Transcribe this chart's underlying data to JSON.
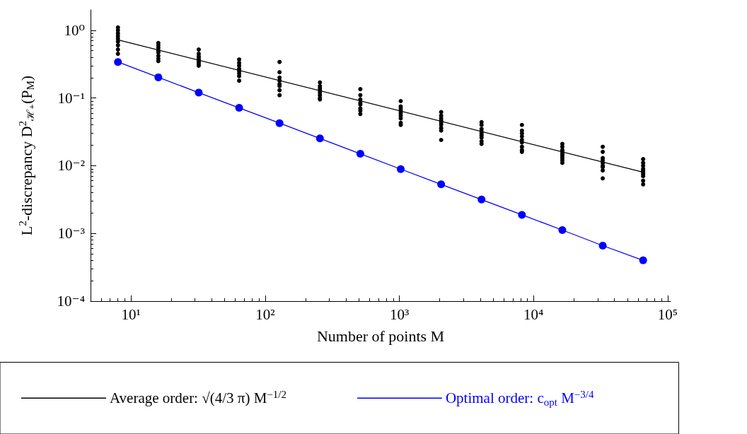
{
  "chart_data": {
    "type": "line",
    "xlabel": "Number of points M",
    "ylabel": "L$^{2}$-discrepancy D$^{2}$$_{ℋ₊}$(P$_{M}$)",
    "log": "xy",
    "xlim": [
      5,
      105000
    ],
    "xticks": [
      {
        "value": 10,
        "label": "10¹"
      },
      {
        "value": 100,
        "label": "10²"
      },
      {
        "value": 1000,
        "label": "10³"
      },
      {
        "value": 10000,
        "label": "10⁴"
      },
      {
        "value": 100000,
        "label": "10⁵"
      }
    ],
    "ylim": [
      0.0001,
      2
    ],
    "yticks": [
      {
        "value": 0.0001,
        "label": "10⁻⁴"
      },
      {
        "value": 0.001,
        "label": "10⁻³"
      },
      {
        "value": 0.01,
        "label": "10⁻²"
      },
      {
        "value": 0.1,
        "label": "10⁻¹"
      },
      {
        "value": 1,
        "label": "10⁰"
      }
    ],
    "grid": false,
    "legend": "bottom",
    "series": [
      {
        "name": "Average order: √(4/3 π) M$^{−1/2}$",
        "color": "#000000",
        "marker": "none",
        "x": [
          8,
          65536
        ],
        "values": [
          0.7236,
          0.008
        ]
      },
      {
        "type": "scatter",
        "color": "#000000",
        "marker": "circle",
        "x": [
          8,
          8,
          8,
          8,
          8,
          8,
          8,
          8,
          8,
          16,
          16,
          16,
          16,
          16,
          16,
          16,
          16,
          32,
          32,
          32,
          32,
          32,
          32,
          32,
          32,
          64,
          64,
          64,
          64,
          64,
          64,
          64,
          64,
          128,
          128,
          128,
          128,
          128,
          128,
          128,
          128,
          256,
          256,
          256,
          256,
          256,
          256,
          256,
          256,
          512,
          512,
          512,
          512,
          512,
          512,
          512,
          512,
          1024,
          1024,
          1024,
          1024,
          1024,
          1024,
          1024,
          1024,
          1024,
          2048,
          2048,
          2048,
          2048,
          2048,
          2048,
          2048,
          2048,
          2048,
          4096,
          4096,
          4096,
          4096,
          4096,
          4096,
          4096,
          4096,
          4096,
          8192,
          8192,
          8192,
          8192,
          8192,
          8192,
          8192,
          8192,
          8192,
          16384,
          16384,
          16384,
          16384,
          16384,
          16384,
          16384,
          16384,
          16384,
          32768,
          32768,
          32768,
          32768,
          32768,
          32768,
          32768,
          32768,
          32768,
          65536,
          65536,
          65536,
          65536,
          65536,
          65536,
          65536,
          65536,
          65536,
          65536
        ],
        "values": [
          1.1,
          1.0,
          0.9,
          0.82,
          0.75,
          0.68,
          0.6,
          0.52,
          0.45,
          0.65,
          0.6,
          0.55,
          0.5,
          0.47,
          0.42,
          0.38,
          0.35,
          0.52,
          0.45,
          0.41,
          0.38,
          0.36,
          0.34,
          0.32,
          0.3,
          0.37,
          0.33,
          0.3,
          0.27,
          0.25,
          0.23,
          0.21,
          0.18,
          0.34,
          0.24,
          0.2,
          0.18,
          0.16,
          0.15,
          0.13,
          0.11,
          0.17,
          0.15,
          0.14,
          0.13,
          0.12,
          0.11,
          0.1,
          0.095,
          0.135,
          0.11,
          0.095,
          0.085,
          0.08,
          0.07,
          0.065,
          0.058,
          0.09,
          0.075,
          0.07,
          0.065,
          0.06,
          0.055,
          0.05,
          0.043,
          0.04,
          0.062,
          0.055,
          0.05,
          0.046,
          0.043,
          0.04,
          0.036,
          0.033,
          0.024,
          0.044,
          0.04,
          0.035,
          0.032,
          0.03,
          0.028,
          0.026,
          0.023,
          0.021,
          0.04,
          0.033,
          0.03,
          0.027,
          0.024,
          0.022,
          0.019,
          0.017,
          0.016,
          0.021,
          0.019,
          0.017,
          0.016,
          0.015,
          0.014,
          0.013,
          0.012,
          0.011,
          0.019,
          0.016,
          0.013,
          0.012,
          0.011,
          0.01,
          0.0095,
          0.0085,
          0.0065,
          0.0125,
          0.011,
          0.01,
          0.009,
          0.0085,
          0.008,
          0.0075,
          0.007,
          0.006,
          0.0053
        ]
      },
      {
        "name": "Optimal order: c$_{opt}$ M$^{−3/4}$",
        "color": "#0000ff",
        "marker": "circle",
        "x": [
          8,
          16,
          32,
          64,
          128,
          256,
          512,
          1024,
          2048,
          4096,
          8192,
          16384,
          32768,
          65536
        ],
        "values": [
          0.34,
          0.202,
          0.12,
          0.0715,
          0.0425,
          0.0253,
          0.015,
          0.0089,
          0.0053,
          0.00316,
          0.00188,
          0.00112,
          0.00066,
          0.0004
        ]
      }
    ]
  }
}
